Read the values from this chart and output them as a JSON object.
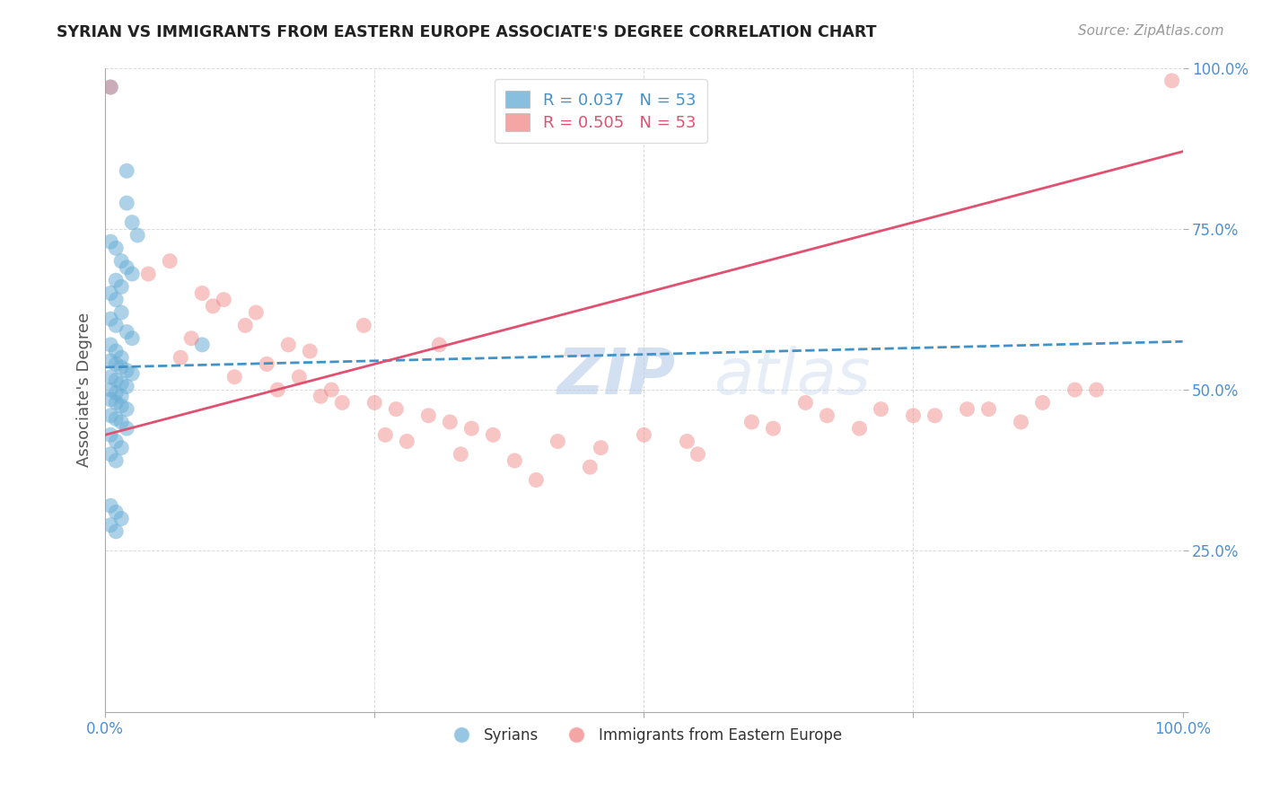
{
  "title": "SYRIAN VS IMMIGRANTS FROM EASTERN EUROPE ASSOCIATE'S DEGREE CORRELATION CHART",
  "source": "Source: ZipAtlas.com",
  "ylabel": "Associate's Degree",
  "xlim": [
    0.0,
    1.0
  ],
  "ylim": [
    0.0,
    1.0
  ],
  "y_tick_positions": [
    0.0,
    0.25,
    0.5,
    0.75,
    1.0
  ],
  "y_tick_labels": [
    "",
    "25.0%",
    "50.0%",
    "75.0%",
    "100.0%"
  ],
  "x_tick_positions": [
    0.0,
    0.25,
    0.5,
    0.75,
    1.0
  ],
  "x_tick_labels": [
    "0.0%",
    "",
    "",
    "",
    "100.0%"
  ],
  "blue_R": 0.037,
  "blue_N": 53,
  "pink_R": 0.505,
  "pink_N": 53,
  "blue_color": "#6baed6",
  "pink_color": "#f08080",
  "trendline_blue_color": "#4292c6",
  "trendline_pink_color": "#e05070",
  "legend_blue_label": "R = 0.037   N = 53",
  "legend_pink_label": "R = 0.505   N = 53",
  "grid_color": "#cccccc",
  "background_color": "#ffffff",
  "title_color": "#222222",
  "axis_label_color": "#555555",
  "tick_label_color": "#4a90d9",
  "blue_scatter_x": [
    0.005,
    0.02,
    0.02,
    0.025,
    0.03,
    0.005,
    0.01,
    0.015,
    0.02,
    0.025,
    0.01,
    0.015,
    0.005,
    0.01,
    0.015,
    0.005,
    0.01,
    0.02,
    0.025,
    0.005,
    0.01,
    0.015,
    0.005,
    0.01,
    0.015,
    0.02,
    0.025,
    0.005,
    0.01,
    0.015,
    0.02,
    0.005,
    0.01,
    0.015,
    0.005,
    0.01,
    0.015,
    0.02,
    0.005,
    0.01,
    0.015,
    0.02,
    0.005,
    0.01,
    0.015,
    0.005,
    0.01,
    0.005,
    0.01,
    0.015,
    0.005,
    0.01,
    0.09
  ],
  "blue_scatter_y": [
    0.97,
    0.84,
    0.79,
    0.76,
    0.74,
    0.73,
    0.72,
    0.7,
    0.69,
    0.68,
    0.67,
    0.66,
    0.65,
    0.64,
    0.62,
    0.61,
    0.6,
    0.59,
    0.58,
    0.57,
    0.56,
    0.55,
    0.545,
    0.54,
    0.535,
    0.53,
    0.525,
    0.52,
    0.515,
    0.51,
    0.505,
    0.5,
    0.495,
    0.49,
    0.485,
    0.48,
    0.475,
    0.47,
    0.46,
    0.455,
    0.45,
    0.44,
    0.43,
    0.42,
    0.41,
    0.4,
    0.39,
    0.32,
    0.31,
    0.3,
    0.29,
    0.28,
    0.57
  ],
  "pink_scatter_x": [
    0.005,
    0.04,
    0.24,
    0.31,
    0.06,
    0.09,
    0.14,
    0.11,
    0.07,
    0.13,
    0.17,
    0.19,
    0.08,
    0.12,
    0.16,
    0.2,
    0.22,
    0.25,
    0.27,
    0.3,
    0.32,
    0.34,
    0.36,
    0.1,
    0.15,
    0.18,
    0.21,
    0.26,
    0.28,
    0.33,
    0.38,
    0.42,
    0.46,
    0.5,
    0.54,
    0.6,
    0.65,
    0.7,
    0.75,
    0.8,
    0.85,
    0.9,
    0.62,
    0.67,
    0.72,
    0.77,
    0.82,
    0.87,
    0.92,
    0.55,
    0.45,
    0.4,
    0.99
  ],
  "pink_scatter_y": [
    0.97,
    0.68,
    0.6,
    0.57,
    0.7,
    0.65,
    0.62,
    0.64,
    0.55,
    0.6,
    0.57,
    0.56,
    0.58,
    0.52,
    0.5,
    0.49,
    0.48,
    0.48,
    0.47,
    0.46,
    0.45,
    0.44,
    0.43,
    0.63,
    0.54,
    0.52,
    0.5,
    0.43,
    0.42,
    0.4,
    0.39,
    0.42,
    0.41,
    0.43,
    0.42,
    0.45,
    0.48,
    0.44,
    0.46,
    0.47,
    0.45,
    0.5,
    0.44,
    0.46,
    0.47,
    0.46,
    0.47,
    0.48,
    0.5,
    0.4,
    0.38,
    0.36,
    0.98
  ],
  "blue_trend_x0": 0.0,
  "blue_trend_x1": 1.0,
  "blue_trend_y0": 0.535,
  "blue_trend_y1": 0.575,
  "pink_trend_x0": 0.0,
  "pink_trend_x1": 1.0,
  "pink_trend_y0": 0.43,
  "pink_trend_y1": 0.87
}
